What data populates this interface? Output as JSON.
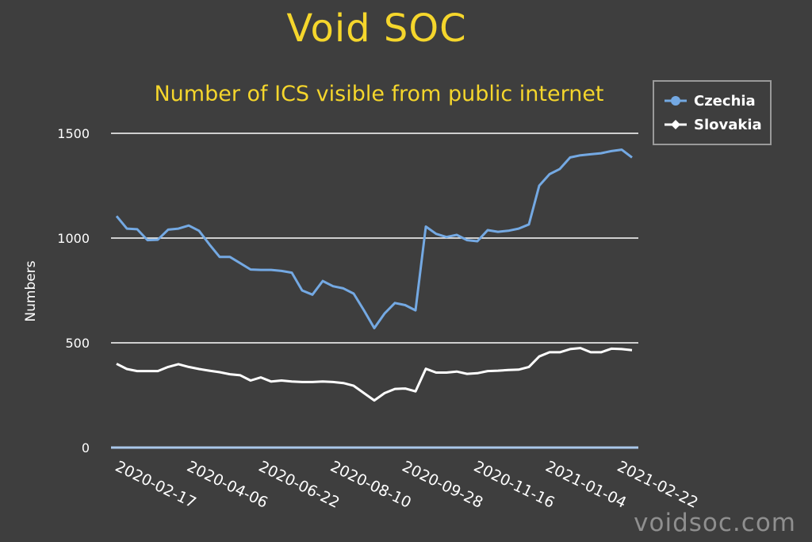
{
  "brand": {
    "title": "Void SOC",
    "watermark": "voidsoc.com"
  },
  "chart_data": {
    "type": "line",
    "title": "Number of ICS visible from public internet",
    "xlabel": "",
    "ylabel": "Numbers",
    "ylim": [
      0,
      1500
    ],
    "yticks": [
      0,
      500,
      1000,
      1500
    ],
    "xtick_labels": [
      "2020-02-17",
      "2020-04-06",
      "2020-06-22",
      "2020-08-10",
      "2020-09-28",
      "2020-11-16",
      "2021-01-04",
      "2021-02-22"
    ],
    "grid": true,
    "legend_position": "top-right",
    "series": [
      {
        "name": "Czechia",
        "color": "#74a9e3",
        "values": [
          1105,
          1045,
          1042,
          990,
          992,
          1040,
          1045,
          1060,
          1035,
          970,
          910,
          910,
          880,
          850,
          848,
          848,
          843,
          835,
          750,
          730,
          795,
          770,
          760,
          735,
          655,
          570,
          640,
          690,
          680,
          655,
          1055,
          1020,
          1005,
          1015,
          990,
          985,
          1038,
          1030,
          1035,
          1045,
          1065,
          1250,
          1305,
          1330,
          1385,
          1395,
          1400,
          1405,
          1415,
          1422,
          1385
        ]
      },
      {
        "name": "Slovakia",
        "color": "#ffffff",
        "values": [
          400,
          375,
          365,
          365,
          365,
          385,
          398,
          385,
          375,
          367,
          360,
          350,
          345,
          320,
          335,
          315,
          320,
          315,
          313,
          313,
          315,
          313,
          308,
          295,
          260,
          225,
          260,
          280,
          282,
          268,
          376,
          358,
          358,
          363,
          352,
          355,
          365,
          367,
          370,
          372,
          385,
          435,
          455,
          455,
          470,
          475,
          455,
          455,
          472,
          470,
          465
        ]
      }
    ]
  }
}
